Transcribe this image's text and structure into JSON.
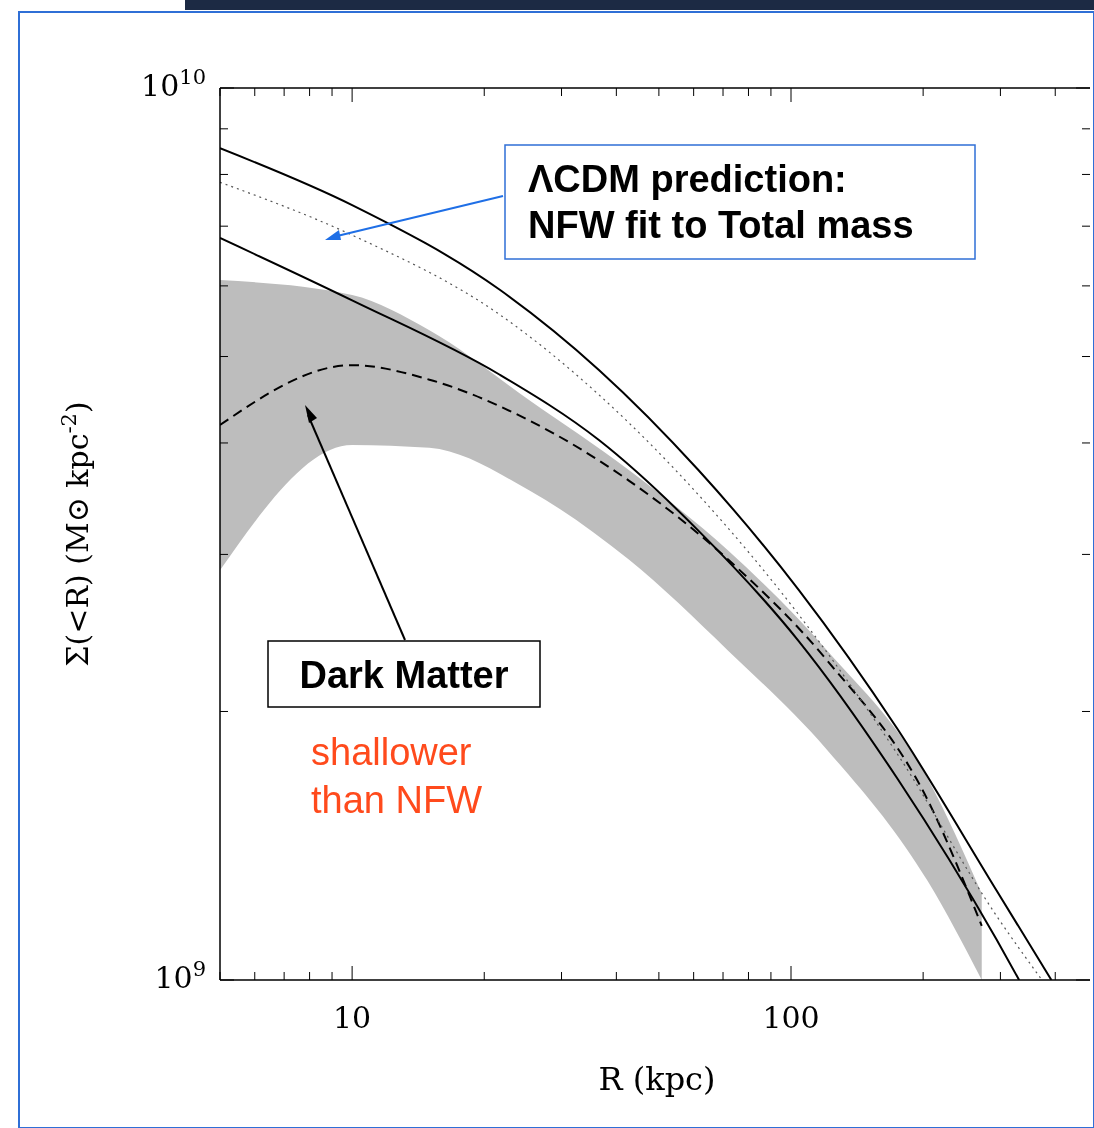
{
  "chart_data": {
    "type": "line",
    "xlabel": "R (kpc)",
    "ylabel": "Σ(<R) (M⊙ kpc$^{-2}$)",
    "log": "xy",
    "xlim": [
      5,
      480
    ],
    "ylim": [
      1000000000,
      10000000000
    ],
    "xticks": [
      {
        "value": 5,
        "label": null
      },
      {
        "value": 6,
        "label": null
      },
      {
        "value": 7,
        "label": null
      },
      {
        "value": 8,
        "label": null
      },
      {
        "value": 9,
        "label": null
      },
      10,
      {
        "value": 20,
        "label": null
      },
      {
        "value": 30,
        "label": null
      },
      {
        "value": 40,
        "label": null
      },
      {
        "value": 50,
        "label": null
      },
      {
        "value": 60,
        "label": null
      },
      {
        "value": 70,
        "label": null
      },
      {
        "value": 80,
        "label": null
      },
      {
        "value": 90,
        "label": null
      },
      100,
      {
        "value": 200,
        "label": null
      },
      {
        "value": 300,
        "label": null
      },
      {
        "value": 400,
        "label": null
      }
    ],
    "yticks": [
      {
        "value": 1000000000,
        "label": "10$^{9}$"
      },
      {
        "value": 2000000000,
        "label": null
      },
      {
        "value": 3000000000,
        "label": null
      },
      {
        "value": 4000000000,
        "label": null
      },
      {
        "value": 5000000000,
        "label": null
      },
      {
        "value": 6000000000,
        "label": null
      },
      {
        "value": 7000000000,
        "label": null
      },
      {
        "value": 8000000000,
        "label": null
      },
      {
        "value": 9000000000,
        "label": null
      },
      {
        "value": 10000000000,
        "label": "10$^{10}$"
      }
    ],
    "series": [
      {
        "color": "#000000",
        "line_style": "solid",
        "x": [
          5,
          10,
          21.7,
          36.5,
          61.5,
          104,
          175,
          294,
          392
        ],
        "values": [
          8560000000.0,
          7390000000.0,
          5940000000.0,
          4830000000.0,
          3730000000.0,
          2740000000.0,
          1910000000.0,
          1260000000.0,
          1000000000.0
        ]
      },
      {
        "color": "#555555",
        "line_style": "dotted",
        "x": [
          5,
          10,
          21.7,
          36.5,
          61.5,
          104,
          175,
          294,
          373
        ],
        "values": [
          7840000000.0,
          6840000000.0,
          5570000000.0,
          4530000000.0,
          3500000000.0,
          2570000000.0,
          1790000000.0,
          1180000000.0,
          1000000000.0
        ]
      },
      {
        "color": "#000000",
        "line_style": "solid",
        "x": [
          5,
          10,
          21.7,
          36.5,
          61.5,
          104,
          175,
          294,
          331
        ],
        "values": [
          6790000000.0,
          5780000000.0,
          4770000000.0,
          4030000000.0,
          3190000000.0,
          2400000000.0,
          1680000000.0,
          1110000000.0,
          1000000000.0
        ]
      },
      {
        "color": "#000000",
        "line_style": "dashed",
        "x": [
          5,
          10,
          15,
          25.3,
          42.7,
          71.9,
          121,
          205,
          272
        ],
        "values": [
          4190000000.0,
          4890000000.0,
          4710000000.0,
          4240000000.0,
          3630000000.0,
          2960000000.0,
          2280000000.0,
          1590000000.0,
          1150000000.0
        ],
        "upper": [
          6090000000.0,
          5860000000.0,
          5350000000.0,
          4470000000.0,
          3730000000.0,
          3030000000.0,
          2340000000.0,
          1680000000.0,
          1250000000.0
        ],
        "lower": [
          2880000000.0,
          3980000000.0,
          3950000000.0,
          3540000000.0,
          2960000000.0,
          2340000000.0,
          1810000000.0,
          1290000000.0,
          1000000000.0
        ]
      }
    ],
    "annotations": [
      "ΛCDM prediction:\nNFW fit to Total mass",
      "Dark Matter",
      "shallower\nthan NFW"
    ]
  }
}
